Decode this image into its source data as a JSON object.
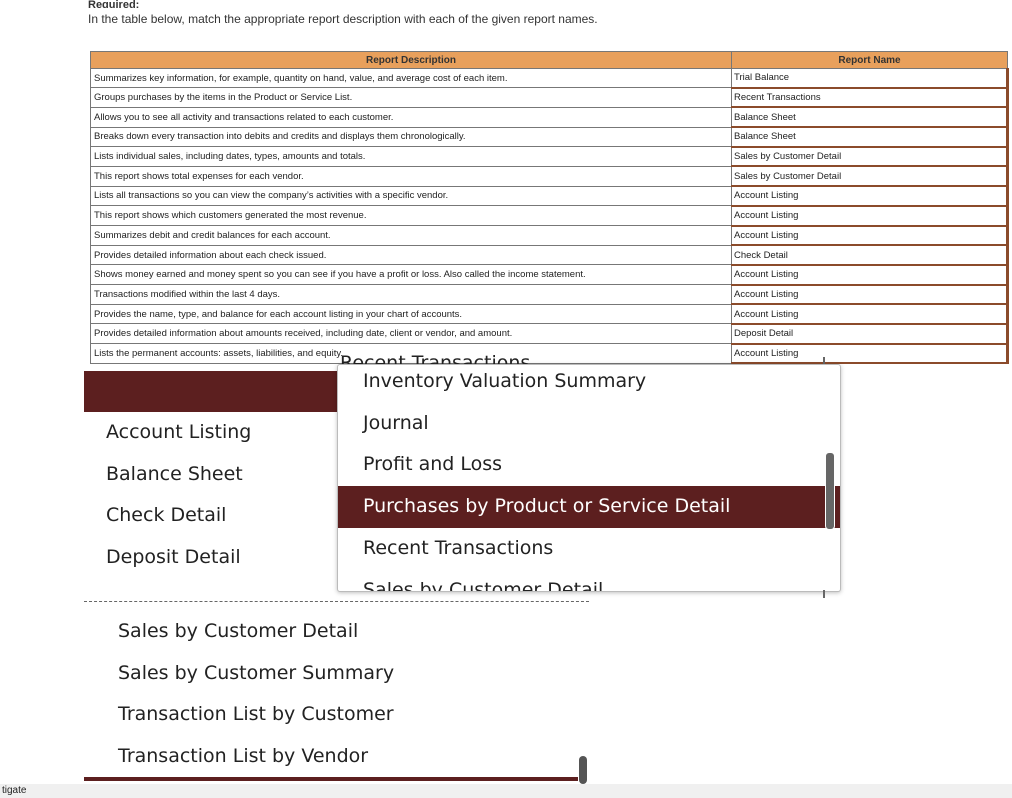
{
  "header": {
    "required_label": "Required:",
    "instruction": "In the table below, match the appropriate report description with each of the given report names."
  },
  "table": {
    "headers": {
      "description": "Report Description",
      "name": "Report Name"
    },
    "rows": [
      {
        "description": "Summarizes key information, for example, quantity on hand, value, and average cost of each item.",
        "name": "Trial Balance"
      },
      {
        "description": "Groups purchases by the items in the Product or Service List.",
        "name": "Recent Transactions"
      },
      {
        "description": "Allows you to see all activity and transactions related to each customer.",
        "name": "Balance Sheet"
      },
      {
        "description": "Breaks down every transaction into debits and credits and displays them chronologically.",
        "name": "Balance Sheet"
      },
      {
        "description": "Lists individual sales, including dates, types, amounts and totals.",
        "name": "Sales by Customer Detail"
      },
      {
        "description": "This report shows total expenses for each vendor.",
        "name": "Sales by Customer Detail"
      },
      {
        "description": "Lists all transactions so you can view the company’s activities with a specific vendor.",
        "name": "Account Listing"
      },
      {
        "description": "This report shows which customers generated the most revenue.",
        "name": "Account Listing"
      },
      {
        "description": "Summarizes debit and credit balances for each account.",
        "name": "Account Listing"
      },
      {
        "description": "Provides detailed information about each check issued.",
        "name": "Check Detail"
      },
      {
        "description": "Shows money earned and money spent so you can see if you have a profit or loss. Also called the income statement.",
        "name": "Account Listing"
      },
      {
        "description": "Transactions modified within the last 4 days.",
        "name": "Account Listing"
      },
      {
        "description": "Provides the name, type, and balance for each account listing in your chart of accounts.",
        "name": "Account Listing"
      },
      {
        "description": "Provides detailed information about amounts received, including date, client or vendor, and amount.",
        "name": "Deposit Detail"
      },
      {
        "description": "Lists the permanent accounts: assets, liabilities, and equity.",
        "name": "Account Listing"
      }
    ]
  },
  "left_list": {
    "items": [
      "Account Listing",
      "Balance Sheet",
      "Check Detail",
      "Deposit Detail"
    ]
  },
  "dropdown": {
    "peek_above": "Recent Transactions",
    "items": [
      "Inventory Valuation Summary",
      "Journal",
      "Profit and Loss",
      "Purchases by Product or Service Detail",
      "Recent Transactions",
      "Sales by Customer Detail"
    ],
    "selected_index": 3
  },
  "bottom_list": {
    "items": [
      "Sales by Customer Detail",
      "Sales by Customer Summary",
      "Transaction List by Customer",
      "Transaction List by Vendor"
    ]
  },
  "footer": {
    "text": "tigate"
  },
  "colors": {
    "header_bg": "#e8a05c",
    "accent": "#5c1f1f"
  }
}
